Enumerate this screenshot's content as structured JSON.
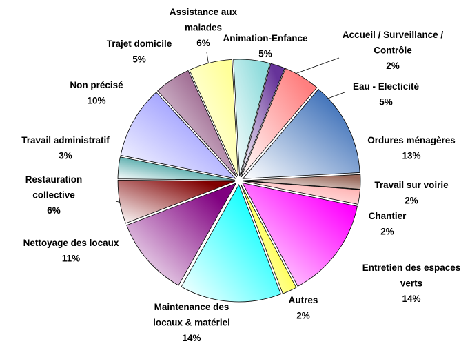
{
  "chart_data": {
    "type": "pie",
    "categories": [
      "Animation-Enfance",
      "Accueil / Surveillance /\nContrôle",
      "Eau - Electicité",
      "Ordures ménagères",
      "Travail sur voirie",
      "Chantier",
      "Entretien des espaces\nverts",
      "Autres",
      "Maintenance des\nlocaux & matériel",
      "Nettoyage des locaux",
      "Restauration\ncollective",
      "Travail administratif",
      "Non précisé",
      "Trajet domicile",
      "Assistance aux\nmalades"
    ],
    "values": [
      5,
      2,
      5,
      13,
      2,
      2,
      14,
      2,
      14,
      11,
      6,
      3,
      10,
      5,
      6
    ],
    "value_labels": [
      "5%",
      "2%",
      "5%",
      "13%",
      "2%",
      "2%",
      "14%",
      "2%",
      "14%",
      "11%",
      "6%",
      "3%",
      "10%",
      "5%",
      "6%"
    ],
    "colors": [
      "#8fdcdc",
      "#663399",
      "#ff7f7f",
      "#3c6fb8",
      "#9a6a5c",
      "#ffb0b0",
      "#ff00ff",
      "#ffff00",
      "#00ffff",
      "#800080",
      "#800000",
      "#008080",
      "#8c8cff",
      "#8a4a7a",
      "#ffff99"
    ]
  }
}
